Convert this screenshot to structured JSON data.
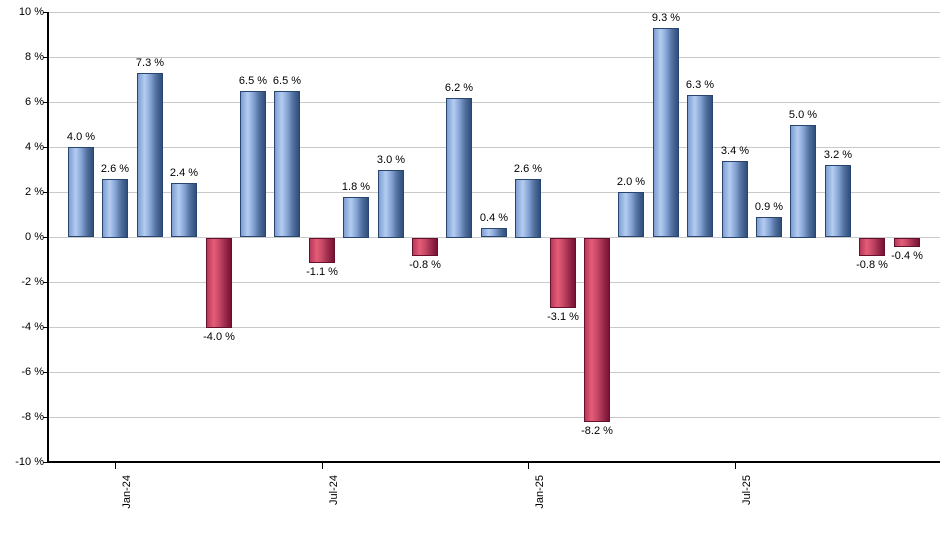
{
  "chart_data": {
    "type": "bar",
    "title": "",
    "xlabel": "",
    "ylabel": "",
    "ylim": [
      -10,
      10
    ],
    "grid": "horizontal",
    "legend": "none",
    "values": [
      4.0,
      2.6,
      7.3,
      2.4,
      -4.0,
      6.5,
      6.5,
      -1.1,
      1.8,
      3.0,
      -0.8,
      6.2,
      0.4,
      2.6,
      -3.1,
      -8.2,
      2.0,
      9.3,
      6.3,
      3.4,
      0.9,
      5.0,
      3.2,
      -0.8,
      -0.4
    ],
    "bar_labels": [
      "4.0 %",
      "2.6 %",
      "7.3 %",
      "2.4 %",
      "-4.0 %",
      "6.5 %",
      "6.5 %",
      "-1.1 %",
      "1.8 %",
      "3.0 %",
      "-0.8 %",
      "6.2 %",
      "0.4 %",
      "2.6 %",
      "-3.1 %",
      "-8.2 %",
      "2.0 %",
      "9.3 %",
      "6.3 %",
      "3.4 %",
      "0.9 %",
      "5.0 %",
      "3.2 %",
      "-0.8 %",
      "-0.4 %"
    ],
    "x_ticks": [
      {
        "label": "Jan-24",
        "bar_index": 1
      },
      {
        "label": "Jul-24",
        "bar_index": 7
      },
      {
        "label": "Jan-25",
        "bar_index": 13
      },
      {
        "label": "Jul-25",
        "bar_index": 19
      }
    ],
    "y_ticks": [
      {
        "value": 10,
        "label": "10 %"
      },
      {
        "value": 8,
        "label": "8 %"
      },
      {
        "value": 6,
        "label": "6 %"
      },
      {
        "value": 4,
        "label": "4 %"
      },
      {
        "value": 2,
        "label": "2 %"
      },
      {
        "value": 0,
        "label": "0 %"
      },
      {
        "value": -2,
        "label": "-2 %"
      },
      {
        "value": -4,
        "label": "-4 %"
      },
      {
        "value": -6,
        "label": "-6 %"
      },
      {
        "value": -8,
        "label": "-8 %"
      },
      {
        "value": -10,
        "label": "-10 %"
      }
    ],
    "colors": {
      "positive_bar": "#7e9ed2",
      "positive_bar_highlight": "#b4ccf0",
      "positive_bar_dark": "#2f4e7b",
      "negative_bar": "#c74a67",
      "negative_bar_highlight": "#e55c78",
      "negative_bar_dark": "#7a1135",
      "gridline": "#c9c9c9",
      "axis": "#000000",
      "label_text": "#000000",
      "background": "#ffffff"
    }
  }
}
